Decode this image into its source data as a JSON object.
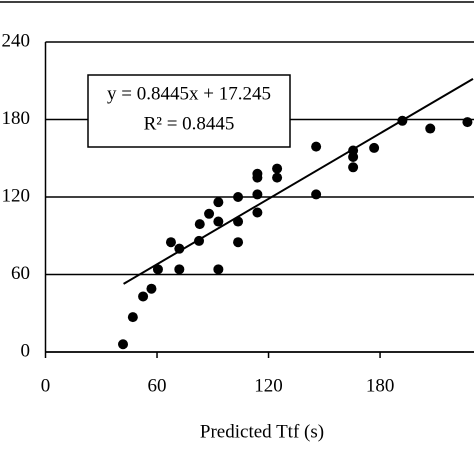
{
  "chart_data": {
    "type": "scatter",
    "xlabel": "Predicted Ttf (s)",
    "x": [
      41.7,
      47,
      52.5,
      57,
      60.5,
      67.5,
      72,
      72,
      82.6,
      83,
      88,
      93,
      93,
      93,
      103.6,
      103.6,
      103.6,
      114,
      114,
      114,
      114,
      124.6,
      124.6,
      145.6,
      145.6,
      165.5,
      165.5,
      165.5,
      176.8,
      192,
      207,
      227
    ],
    "values": [
      6,
      27,
      43,
      49,
      64,
      85,
      80,
      64,
      86,
      99,
      107,
      116,
      101,
      64,
      120,
      101,
      85,
      108,
      122,
      135,
      138,
      142,
      135,
      159,
      122,
      156,
      151,
      143,
      158,
      179,
      173,
      178
    ],
    "color": "#000000",
    "xlim": [
      0,
      230
    ],
    "xticks": [
      0,
      60,
      120,
      180
    ],
    "ylim": [
      0,
      240
    ],
    "yticks": [
      0,
      60,
      120,
      180,
      240
    ],
    "grid": true,
    "fit": {
      "slope": 0.8445,
      "intercept": 17.245,
      "xrange": [
        42,
        230
      ]
    },
    "annotations": [
      "y = 0.8445x + 17.245",
      "R² = 0.8445"
    ]
  }
}
